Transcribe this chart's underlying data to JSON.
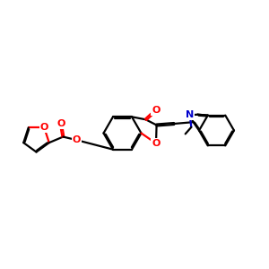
{
  "bg_color": "#ffffff",
  "bond_color": "#000000",
  "o_color": "#ff0000",
  "n_color": "#0000cc",
  "line_width": 1.6,
  "figsize": [
    3.0,
    3.0
  ],
  "dpi": 100,
  "xlim": [
    0,
    10
  ],
  "ylim": [
    1.5,
    8.5
  ]
}
